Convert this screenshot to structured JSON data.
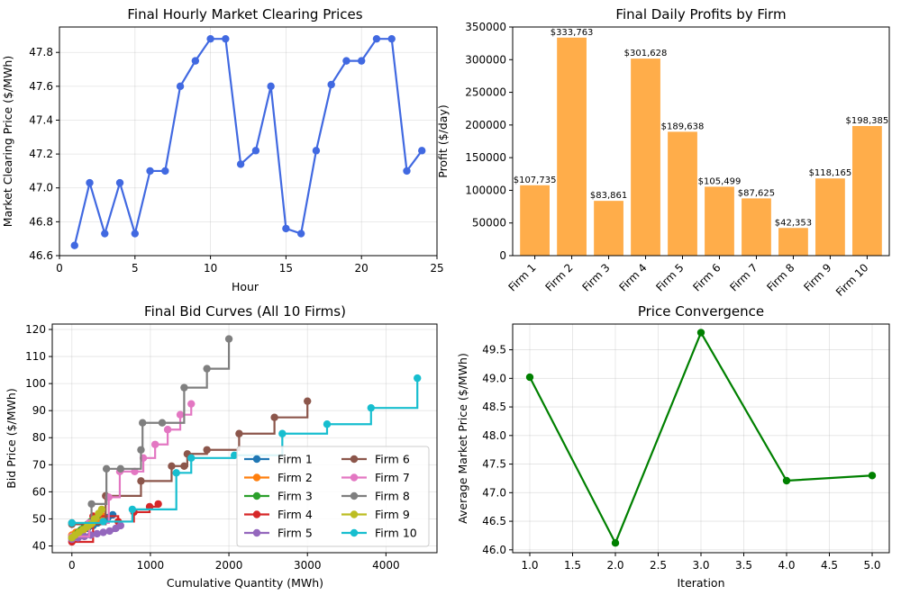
{
  "chart_data": [
    {
      "type": "line",
      "title": "Final Hourly Market Clearing Prices",
      "xlabel": "Hour",
      "ylabel": "Market Clearing Price ($/MWh)",
      "xlim": [
        0,
        25
      ],
      "ylim": [
        46.6,
        47.95
      ],
      "xticks": [
        0,
        5,
        10,
        15,
        20,
        25
      ],
      "yticks": [
        46.6,
        46.8,
        47.0,
        47.2,
        47.4,
        47.6,
        47.8
      ],
      "grid": true,
      "color": "#4169e1",
      "x": [
        1,
        2,
        3,
        4,
        5,
        6,
        7,
        8,
        9,
        10,
        11,
        12,
        13,
        14,
        15,
        16,
        17,
        18,
        19,
        20,
        21,
        22,
        23,
        24
      ],
      "y": [
        46.66,
        47.03,
        46.73,
        47.03,
        46.73,
        47.1,
        47.1,
        47.6,
        47.75,
        47.88,
        47.88,
        47.14,
        47.22,
        47.6,
        46.76,
        46.73,
        47.22,
        47.61,
        47.75,
        47.75,
        47.88,
        47.88,
        47.1,
        47.22
      ]
    },
    {
      "type": "bar",
      "title": "Final Daily Profits by Firm",
      "xlabel": "",
      "ylabel": "Profit ($/day)",
      "ylim": [
        0,
        350000
      ],
      "yticks": [
        0,
        50000,
        100000,
        150000,
        200000,
        250000,
        300000,
        350000
      ],
      "color": "#ffad4a",
      "categories": [
        "Firm 1",
        "Firm 2",
        "Firm 3",
        "Firm 4",
        "Firm 5",
        "Firm 6",
        "Firm 7",
        "Firm 8",
        "Firm 9",
        "Firm 10"
      ],
      "values": [
        107735,
        333763,
        83861,
        301628,
        189638,
        105499,
        87625,
        42353,
        118165,
        198385
      ],
      "labels": [
        "$107,735",
        "$333,763",
        "$83,861",
        "$301,628",
        "$189,638",
        "$105,499",
        "$87,625",
        "$42,353",
        "$118,165",
        "$198,385"
      ]
    },
    {
      "type": "line",
      "title": "Final Bid Curves (All 10 Firms)",
      "xlabel": "Cumulative Quantity (MWh)",
      "ylabel": "Bid Price ($/MWh)",
      "xlim": [
        -250,
        4650
      ],
      "ylim": [
        37.5,
        122
      ],
      "xticks": [
        0,
        1000,
        2000,
        3000,
        4000
      ],
      "yticks": [
        40,
        50,
        60,
        70,
        80,
        90,
        100,
        110,
        120
      ],
      "grid": true,
      "legend": "lower-right",
      "series": [
        {
          "name": "Firm 1",
          "color": "#1f77b4",
          "x": [
            0,
            60,
            130,
            200,
            270,
            330,
            400,
            460,
            520
          ],
          "y": [
            43.5,
            44.5,
            45.5,
            46.5,
            47.5,
            48.5,
            49.5,
            50.5,
            51.5
          ]
        },
        {
          "name": "Firm 2",
          "color": "#ff7f0e",
          "x": [
            0,
            50,
            100,
            150,
            200,
            250,
            300,
            350,
            400
          ],
          "y": [
            44,
            45,
            45.5,
            46,
            47,
            48,
            49,
            50,
            51
          ]
        },
        {
          "name": "Firm 3",
          "color": "#2ca02c",
          "x": [
            0,
            40,
            80,
            120,
            160,
            200,
            240,
            280,
            320
          ],
          "y": [
            43,
            44,
            45,
            46,
            47,
            48,
            49,
            50,
            51
          ]
        },
        {
          "name": "Firm 4",
          "color": "#d62728",
          "x": [
            0,
            270,
            590,
            790,
            990,
            1100
          ],
          "y": [
            41.5,
            51,
            49,
            52.5,
            54.5,
            55.5
          ]
        },
        {
          "name": "Firm 5",
          "color": "#9467bd",
          "x": [
            0,
            80,
            160,
            240,
            320,
            400,
            480,
            560,
            620
          ],
          "y": [
            42.5,
            43,
            43.5,
            44,
            44.5,
            45,
            45.5,
            46.5,
            47.5
          ]
        },
        {
          "name": "Firm 6",
          "color": "#8c564b",
          "x": [
            0,
            430,
            880,
            1270,
            1430,
            1470,
            1720,
            2130,
            2580,
            3000
          ],
          "y": [
            48,
            58.5,
            64,
            69.5,
            69.5,
            74,
            75.5,
            81.5,
            87.5,
            93.5
          ]
        },
        {
          "name": "Firm 7",
          "color": "#e377c2",
          "x": [
            0,
            220,
            470,
            610,
            800,
            910,
            1060,
            1220,
            1380,
            1520
          ],
          "y": [
            43.5,
            48.5,
            58,
            67.5,
            67.5,
            72.5,
            77.5,
            83,
            88.5,
            92.5
          ]
        },
        {
          "name": "Firm 8",
          "color": "#7f7f7f",
          "x": [
            0,
            250,
            440,
            620,
            880,
            900,
            1150,
            1430,
            1720,
            2000
          ],
          "y": [
            48.5,
            55.5,
            68.5,
            68.5,
            75.5,
            85.5,
            85.5,
            98.5,
            105.5,
            116.5
          ]
        },
        {
          "name": "Firm 9",
          "color": "#bcbd22",
          "x": [
            0,
            40,
            90,
            140,
            190,
            240,
            290,
            340,
            380
          ],
          "y": [
            43,
            44,
            45,
            46,
            47,
            48,
            50,
            52,
            53.5
          ]
        },
        {
          "name": "Firm 10",
          "color": "#17becf",
          "x": [
            0,
            400,
            770,
            1330,
            1520,
            2070,
            2680,
            3250,
            3810,
            4400
          ],
          "y": [
            48.5,
            49,
            53.5,
            67,
            72.5,
            73.5,
            81.5,
            85,
            91,
            102
          ]
        }
      ]
    },
    {
      "type": "line",
      "title": "Price Convergence",
      "xlabel": "Iteration",
      "ylabel": "Average Market Price ($/MWh)",
      "xlim": [
        0.8,
        5.2
      ],
      "ylim": [
        45.95,
        49.95
      ],
      "xticks": [
        1.0,
        1.5,
        2.0,
        2.5,
        3.0,
        3.5,
        4.0,
        4.5,
        5.0
      ],
      "yticks": [
        46.0,
        46.5,
        47.0,
        47.5,
        48.0,
        48.5,
        49.0,
        49.5
      ],
      "grid": true,
      "color": "#008000",
      "x": [
        1,
        2,
        3,
        4,
        5
      ],
      "y": [
        49.02,
        46.12,
        49.8,
        47.21,
        47.3
      ]
    }
  ]
}
